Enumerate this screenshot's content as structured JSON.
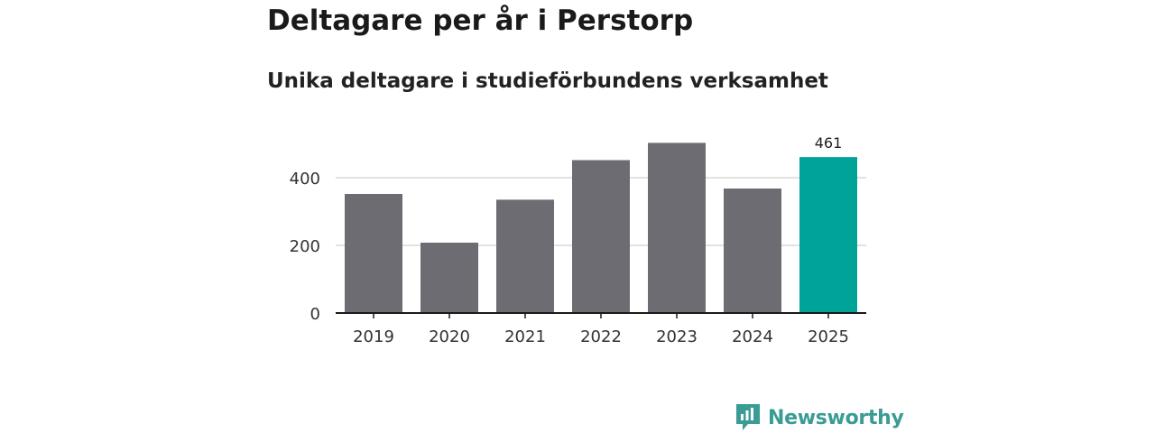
{
  "header": {
    "title": "Deltagare per år i Perstorp",
    "subtitle": "Unika deltagare i studieförbundens verksamhet"
  },
  "chart_data": {
    "type": "bar",
    "title": "Deltagare per år i Perstorp",
    "subtitle": "Unika deltagare i studieförbundens verksamhet",
    "xlabel": "",
    "ylabel": "",
    "categories": [
      "2019",
      "2020",
      "2021",
      "2022",
      "2023",
      "2024",
      "2025"
    ],
    "values": [
      352,
      208,
      335,
      452,
      503,
      368,
      461
    ],
    "ylim": [
      0,
      520
    ],
    "yticks": [
      0,
      200,
      400
    ],
    "grid": true,
    "legend": "none",
    "data_labels": [
      {
        "category": "2025",
        "text": "461"
      }
    ],
    "colors": {
      "bar": "#6d6c72",
      "highlight": "#00a398",
      "highlight_category": "2025",
      "grid": "#d9d9d9",
      "axis": "#1a1a1a"
    }
  },
  "brand": {
    "name": "Newsworthy",
    "icon": "newsworthy-logo-icon",
    "color": "#3a9c95"
  }
}
